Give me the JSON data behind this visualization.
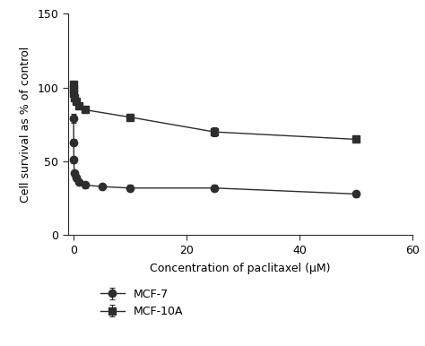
{
  "mcf7_x": [
    0,
    0.01,
    0.05,
    0.1,
    0.5,
    1,
    2,
    5,
    10,
    25,
    50
  ],
  "mcf7_y": [
    79,
    63,
    51,
    42,
    39,
    36,
    34,
    33,
    32,
    32,
    28
  ],
  "mcf7_yerr": [
    3,
    2,
    2,
    2,
    2,
    2,
    2,
    2,
    2,
    2,
    2
  ],
  "mcf10a_x": [
    0,
    0.01,
    0.05,
    0.1,
    0.5,
    1,
    2,
    10,
    25,
    50
  ],
  "mcf10a_y": [
    102,
    99,
    96,
    93,
    91,
    88,
    85,
    80,
    70,
    65
  ],
  "mcf10a_yerr": [
    2,
    2,
    2,
    2,
    2,
    2,
    2,
    2,
    3,
    2
  ],
  "xlabel": "Concentration of paclitaxel (μM)",
  "ylabel": "Cell survival as % of control",
  "xlim": [
    -1,
    60
  ],
  "ylim": [
    0,
    150
  ],
  "yticks": [
    0,
    50,
    100,
    150
  ],
  "xticks": [
    0,
    20,
    40,
    60
  ],
  "legend_labels": [
    "MCF-7",
    "MCF-10A"
  ],
  "line_color": "#2d2d2d",
  "marker_circle": "o",
  "marker_square": "s",
  "markersize": 6,
  "linewidth": 1.0,
  "capsize": 2,
  "elinewidth": 0.8
}
